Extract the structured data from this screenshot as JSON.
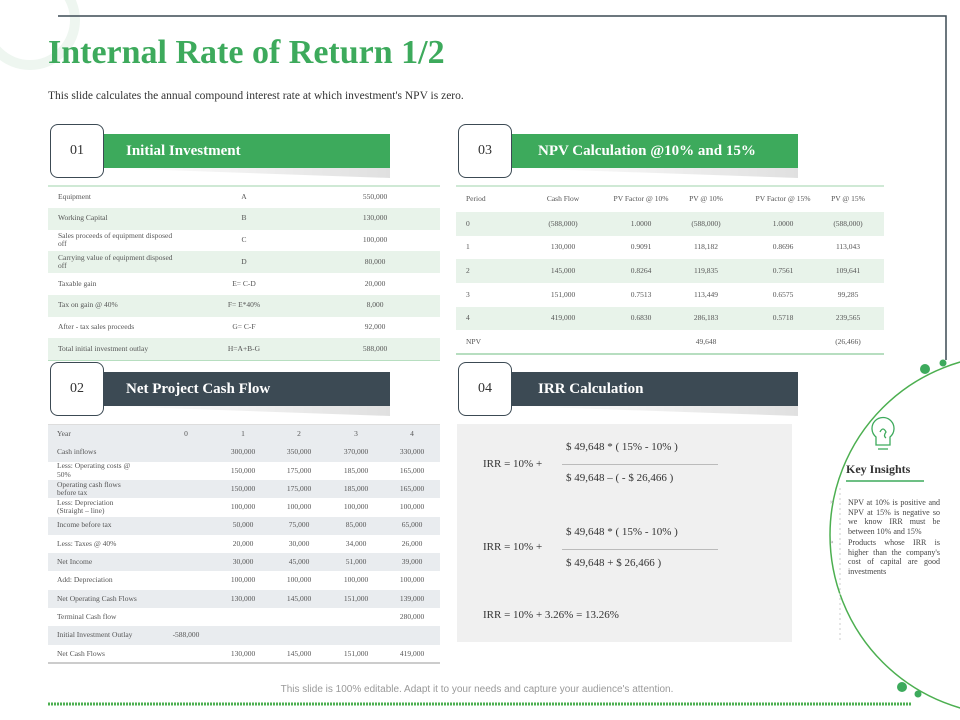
{
  "title": "Internal Rate of Return 1/2",
  "subtitle": "This slide calculates the annual compound interest rate at which investment's NPV is zero.",
  "section1": {
    "number": "01",
    "title": "Initial Investment",
    "rows": [
      [
        "Equipment",
        "A",
        "550,000"
      ],
      [
        "Working Capital",
        "B",
        "130,000"
      ],
      [
        "Sales proceeds of equipment disposed off",
        "C",
        "100,000"
      ],
      [
        "Carrying value of equipment disposed off",
        "D",
        "80,000"
      ],
      [
        "Taxable gain",
        "E= C-D",
        "20,000"
      ],
      [
        "Tax on gain @ 40%",
        "F= E*40%",
        "8,000"
      ],
      [
        "After - tax sales proceeds",
        "G= C-F",
        "92,000"
      ],
      [
        "Total initial investment outlay",
        "H=A+B-G",
        "588,000"
      ]
    ]
  },
  "section2": {
    "number": "02",
    "title": "Net Project Cash Flow",
    "header": [
      "Year",
      "0",
      "1",
      "2",
      "3",
      "4"
    ],
    "rows": [
      [
        "Cash inflows",
        null,
        "300,000",
        "350,000",
        "370,000",
        "330,000"
      ],
      [
        "Less: Operating costs @ 50%",
        null,
        "150,000",
        "175,000",
        "185,000",
        "165,000"
      ],
      [
        "Operating cash flows before tax",
        null,
        "150,000",
        "175,000",
        "185,000",
        "165,000"
      ],
      [
        "Less: Depreciation (Straight – line)",
        null,
        "100,000",
        "100,000",
        "100,000",
        "100,000"
      ],
      [
        "Income before tax",
        null,
        "50,000",
        "75,000",
        "85,000",
        "65,000"
      ],
      [
        "Less: Taxes @ 40%",
        null,
        "20,000",
        "30,000",
        "34,000",
        "26,000"
      ],
      [
        "Net Income",
        null,
        "30,000",
        "45,000",
        "51,000",
        "39,000"
      ],
      [
        "Add: Depreciation",
        null,
        "100,000",
        "100,000",
        "100,000",
        "100,000"
      ],
      [
        "Net Operating Cash Flows",
        null,
        "130,000",
        "145,000",
        "151,000",
        "139,000"
      ],
      [
        "Terminal Cash flow",
        null,
        null,
        null,
        null,
        "280,000"
      ],
      [
        "Initial Investment Outlay",
        "-588,000",
        null,
        null,
        null,
        null
      ],
      [
        "Net Cash Flows",
        null,
        "130,000",
        "145,000",
        "151,000",
        "419,000"
      ]
    ]
  },
  "section3": {
    "number": "03",
    "title": "NPV Calculation @10% and 15%",
    "header": [
      "Period",
      "Cash Flow",
      "PV Factor @ 10%",
      "PV @ 10%",
      "PV Factor @ 15%",
      "PV @ 15%"
    ],
    "rows": [
      [
        "0",
        "(588,000)",
        "1.0000",
        "(588,000)",
        "1.0000",
        "(588,000)"
      ],
      [
        "1",
        "130,000",
        "0.9091",
        "118,182",
        "0.8696",
        "113,043"
      ],
      [
        "2",
        "145,000",
        "0.8264",
        "119,835",
        "0.7561",
        "109,641"
      ],
      [
        "3",
        "151,000",
        "0.7513",
        "113,449",
        "0.6575",
        "99,285"
      ],
      [
        "4",
        "419,000",
        "0.6830",
        "286,183",
        "0.5718",
        "239,565"
      ],
      [
        "NPV",
        null,
        null,
        "49,648",
        null,
        "(26,466)"
      ]
    ]
  },
  "section4": {
    "number": "04",
    "title": "IRR Calculation",
    "formulas": [
      {
        "lhs": "IRR = 10% +",
        "numerator": "$ 49,648 * ( 15% - 10% )",
        "denominator": "$ 49,648 – ( - $ 26,466 )"
      },
      {
        "lhs": "IRR = 10% +",
        "numerator": "$ 49,648 * ( 15% - 10% )",
        "denominator": "$ 49,648 + $ 26,466 )"
      }
    ],
    "result": "IRR = 10% + 3.26% = 13.26%"
  },
  "insights": {
    "title": "Key Insights",
    "bullets": [
      "NPV at 10% is positive and NPV at 15% is negative so we know IRR must be between 10% and 15%",
      "Products whose IRR is higher than the company's cost of capital are good investments"
    ]
  },
  "footer": "This slide is 100% editable. Adapt it to your needs and capture your audience's attention."
}
